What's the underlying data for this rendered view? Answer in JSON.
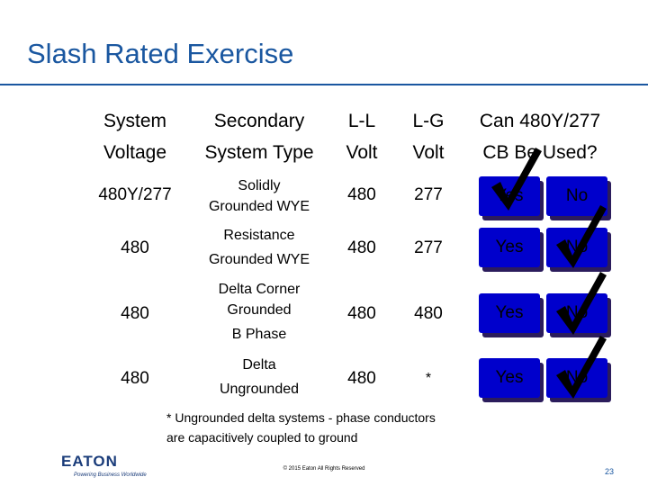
{
  "title": "Slash Rated Exercise",
  "headers": {
    "system_voltage": [
      "System",
      "Voltage"
    ],
    "secondary_type": [
      "Secondary",
      "System Type"
    ],
    "ll": [
      "L-L",
      "Volt"
    ],
    "lg": [
      "L-G",
      "Volt"
    ],
    "can_use": [
      "Can 480Y/277",
      "CB Be Used?"
    ]
  },
  "rows": [
    {
      "system_voltage": "480Y/277",
      "secondary_type": [
        "Solidly",
        "Grounded WYE"
      ],
      "ll": "480",
      "lg": "277",
      "yes_label": "Yes",
      "no_label": "No",
      "checked": "yes"
    },
    {
      "system_voltage": "480",
      "secondary_type": [
        "Resistance",
        "Grounded WYE"
      ],
      "ll": "480",
      "lg": "277",
      "yes_label": "Yes",
      "no_label": "No",
      "checked": "no"
    },
    {
      "system_voltage": "480",
      "secondary_type": [
        "Delta Corner",
        "Grounded",
        "B Phase"
      ],
      "ll": "480",
      "lg": "480",
      "yes_label": "Yes",
      "no_label": "No",
      "checked": "no"
    },
    {
      "system_voltage": "480",
      "secondary_type": [
        "Delta",
        "Ungrounded"
      ],
      "ll": "480",
      "lg": "*",
      "yes_label": "Yes",
      "no_label": "No",
      "checked": "no"
    }
  ],
  "footnote": [
    "* Ungrounded delta systems - phase conductors",
    "are capacitively coupled to ground"
  ],
  "copyright": "© 2015 Eaton All Rights Reserved",
  "page_number": "23",
  "logo": {
    "text": "EATON",
    "tagline": "Powering Business Worldwide",
    "color": "#1a3c7a"
  },
  "colors": {
    "title": "#1a57a0",
    "button": "#0000cc",
    "button_shadow": "#2b1c5c"
  }
}
